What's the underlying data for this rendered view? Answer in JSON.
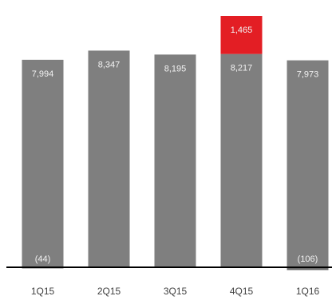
{
  "chart_data": {
    "type": "stacked-bar",
    "categories": [
      "1Q15",
      "2Q15",
      "3Q15",
      "4Q15",
      "1Q16"
    ],
    "series": [
      {
        "color": "#7f7f7f",
        "values": [
          7994,
          8347,
          8195,
          8217,
          7973
        ],
        "value_labels": [
          "7,994",
          "8,347",
          "8,195",
          "8,217",
          "7,973"
        ]
      },
      {
        "color": "#e31e24",
        "values": [
          null,
          null,
          null,
          1465,
          null
        ],
        "value_labels": [
          null,
          null,
          null,
          "1,465",
          null
        ]
      },
      {
        "color": "#6b6b6b",
        "values": [
          -44,
          null,
          null,
          null,
          -106
        ],
        "value_labels": [
          "(44)",
          null,
          null,
          null,
          "(106)"
        ]
      }
    ]
  }
}
